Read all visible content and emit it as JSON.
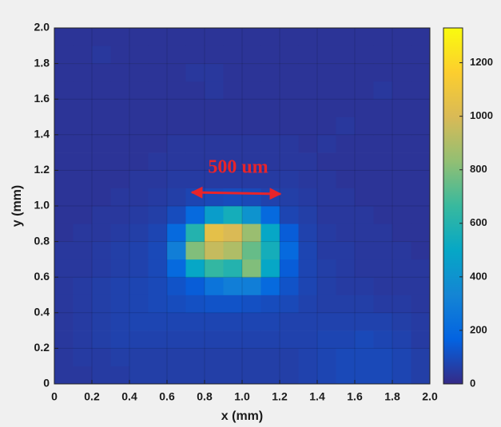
{
  "chart_data": {
    "type": "heatmap",
    "xlabel": "x (mm)",
    "ylabel": "y (mm)",
    "annotation": "500 um",
    "xlim": [
      0,
      2
    ],
    "ylim": [
      0,
      2
    ],
    "xticks": [
      0,
      0.2,
      0.4,
      0.6,
      0.8,
      {
        "value": 1,
        "label": "1.0"
      },
      1.2,
      1.4,
      1.6,
      1.8,
      {
        "value": 2,
        "label": "2.0"
      }
    ],
    "yticks": [
      0,
      0.2,
      0.4,
      0.6,
      0.8,
      {
        "value": 1,
        "label": "1.0"
      },
      1.2,
      1.4,
      1.6,
      1.8,
      {
        "value": 2,
        "label": "2.0"
      }
    ],
    "grid": true,
    "clim": [
      0,
      1330
    ],
    "cticks": [
      0,
      200,
      400,
      600,
      800,
      1000,
      1200
    ],
    "colormap": [
      "#352a87",
      "#0363e1",
      "#1485d4",
      "#06a7c6",
      "#38b99e",
      "#92bf73",
      "#d9ba56",
      "#fcce2e",
      "#f9fb0e"
    ],
    "x": [
      0.05,
      0.15,
      0.25,
      0.35,
      0.45,
      0.55,
      0.65,
      0.75,
      0.85,
      0.95,
      1.05,
      1.15,
      1.25,
      1.35,
      1.45,
      1.55,
      1.65,
      1.75,
      1.85,
      1.95
    ],
    "y": [
      0.05,
      0.15,
      0.25,
      0.35,
      0.45,
      0.55,
      0.65,
      0.75,
      0.85,
      0.95,
      1.05,
      1.15,
      1.25,
      1.35,
      1.45,
      1.55,
      1.65,
      1.75,
      1.85,
      1.95
    ],
    "z": [
      [
        40,
        40,
        50,
        50,
        60,
        60,
        60,
        60,
        60,
        60,
        60,
        60,
        60,
        70,
        80,
        90,
        90,
        90,
        80,
        60
      ],
      [
        40,
        50,
        50,
        60,
        60,
        60,
        60,
        60,
        60,
        60,
        60,
        60,
        60,
        70,
        80,
        90,
        90,
        90,
        80,
        60
      ],
      [
        40,
        50,
        60,
        70,
        70,
        70,
        70,
        70,
        70,
        70,
        70,
        70,
        70,
        70,
        80,
        80,
        90,
        80,
        70,
        50
      ],
      [
        40,
        50,
        60,
        70,
        80,
        80,
        80,
        80,
        80,
        80,
        80,
        80,
        70,
        70,
        70,
        70,
        70,
        70,
        60,
        50
      ],
      [
        40,
        50,
        60,
        70,
        80,
        90,
        100,
        110,
        120,
        120,
        110,
        100,
        90,
        70,
        60,
        60,
        60,
        50,
        50,
        40
      ],
      [
        40,
        50,
        60,
        70,
        80,
        90,
        120,
        150,
        250,
        300,
        300,
        200,
        120,
        80,
        60,
        50,
        50,
        40,
        40,
        40
      ],
      [
        40,
        40,
        50,
        60,
        70,
        90,
        200,
        500,
        650,
        600,
        800,
        500,
        150,
        80,
        60,
        50,
        40,
        40,
        40,
        40
      ],
      [
        40,
        40,
        50,
        60,
        70,
        90,
        300,
        800,
        950,
        900,
        750,
        550,
        200,
        80,
        50,
        50,
        40,
        40,
        40,
        30
      ],
      [
        30,
        40,
        40,
        50,
        60,
        80,
        200,
        600,
        1050,
        1000,
        850,
        500,
        150,
        70,
        50,
        40,
        40,
        40,
        30,
        30
      ],
      [
        30,
        30,
        40,
        40,
        50,
        60,
        100,
        200,
        450,
        550,
        400,
        200,
        80,
        60,
        40,
        40,
        40,
        30,
        30,
        30
      ],
      [
        30,
        30,
        30,
        40,
        40,
        50,
        60,
        80,
        90,
        100,
        90,
        70,
        60,
        50,
        40,
        40,
        30,
        30,
        30,
        30
      ],
      [
        30,
        30,
        30,
        30,
        40,
        40,
        50,
        50,
        50,
        50,
        50,
        50,
        50,
        40,
        40,
        30,
        30,
        30,
        30,
        30
      ],
      [
        30,
        30,
        30,
        30,
        30,
        40,
        40,
        40,
        40,
        40,
        40,
        40,
        40,
        40,
        30,
        30,
        30,
        30,
        30,
        30
      ],
      [
        30,
        30,
        30,
        30,
        30,
        30,
        40,
        40,
        40,
        40,
        40,
        40,
        40,
        30,
        40,
        30,
        30,
        30,
        30,
        30
      ],
      [
        30,
        30,
        30,
        30,
        30,
        30,
        30,
        30,
        30,
        30,
        30,
        30,
        30,
        30,
        30,
        40,
        30,
        30,
        30,
        30
      ],
      [
        30,
        30,
        30,
        30,
        30,
        30,
        30,
        30,
        30,
        30,
        30,
        30,
        30,
        30,
        30,
        30,
        30,
        30,
        30,
        30
      ],
      [
        30,
        30,
        30,
        30,
        30,
        30,
        30,
        30,
        40,
        30,
        30,
        30,
        30,
        30,
        30,
        30,
        30,
        40,
        30,
        30
      ],
      [
        30,
        30,
        30,
        30,
        30,
        30,
        30,
        40,
        40,
        30,
        30,
        30,
        30,
        30,
        30,
        30,
        30,
        30,
        30,
        30
      ],
      [
        30,
        30,
        40,
        30,
        30,
        30,
        30,
        30,
        30,
        30,
        30,
        30,
        30,
        30,
        30,
        30,
        30,
        30,
        30,
        30
      ],
      [
        30,
        30,
        30,
        30,
        30,
        30,
        30,
        30,
        30,
        30,
        30,
        30,
        30,
        30,
        30,
        30,
        30,
        30,
        30,
        30
      ]
    ]
  }
}
